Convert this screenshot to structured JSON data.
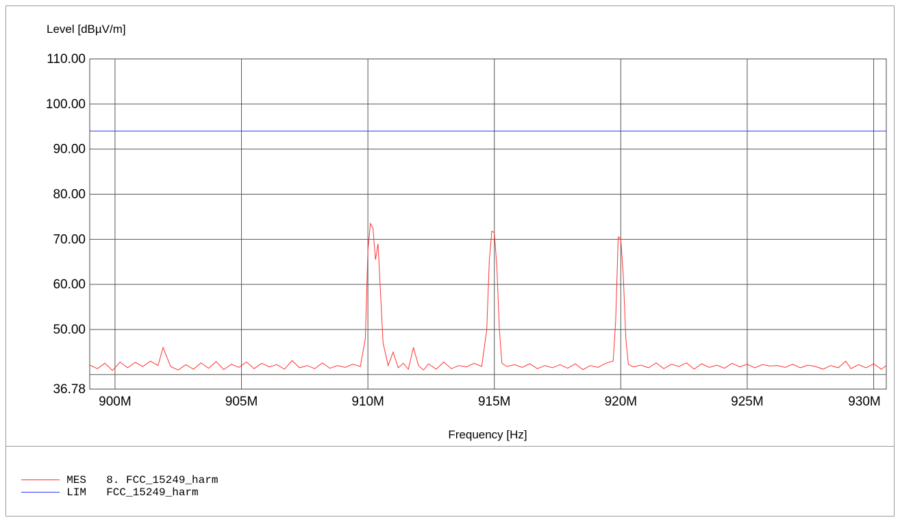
{
  "chart_data": {
    "type": "line",
    "title": "",
    "ylabel": "Level [dBµV/m]",
    "xlabel": "Frequency [Hz]",
    "xlim": [
      899000000,
      930500000
    ],
    "ylim": [
      36.78,
      110.0
    ],
    "y_ticks": [
      {
        "value": 110,
        "label": "110.00"
      },
      {
        "value": 100,
        "label": "100.00"
      },
      {
        "value": 90,
        "label": "90.00"
      },
      {
        "value": 80,
        "label": "80.00"
      },
      {
        "value": 70,
        "label": "70.00"
      },
      {
        "value": 60,
        "label": "60.00"
      },
      {
        "value": 50,
        "label": "50.00"
      },
      {
        "value": 36.78,
        "label": "36.78"
      }
    ],
    "y_gridlines": [
      110,
      100,
      90,
      80,
      70,
      60,
      50,
      40
    ],
    "x_ticks": [
      {
        "value": 900000000,
        "label": "900M"
      },
      {
        "value": 905000000,
        "label": "905M"
      },
      {
        "value": 910000000,
        "label": "910M"
      },
      {
        "value": 915000000,
        "label": "915M"
      },
      {
        "value": 920000000,
        "label": "920M"
      },
      {
        "value": 925000000,
        "label": "925M"
      },
      {
        "value": 930000000,
        "label": "930M"
      }
    ],
    "grid": true,
    "series": [
      {
        "name": "MES",
        "color": "#ff3030",
        "x": [
          899000000,
          899300000,
          899600000,
          899900000,
          900200000,
          900500000,
          900800000,
          901100000,
          901400000,
          901700000,
          901900000,
          902200000,
          902500000,
          902800000,
          903100000,
          903400000,
          903700000,
          904000000,
          904300000,
          904600000,
          904900000,
          905200000,
          905500000,
          905800000,
          906100000,
          906400000,
          906700000,
          907000000,
          907300000,
          907600000,
          907900000,
          908200000,
          908500000,
          908800000,
          909100000,
          909400000,
          909700000,
          909900000,
          910000000,
          910100000,
          910200000,
          910300000,
          910400000,
          910500000,
          910600000,
          910800000,
          911000000,
          911200000,
          911400000,
          911600000,
          911800000,
          912000000,
          912200000,
          912400000,
          912700000,
          913000000,
          913300000,
          913600000,
          913900000,
          914200000,
          914500000,
          914700000,
          914800000,
          914900000,
          915000000,
          915100000,
          915200000,
          915300000,
          915500000,
          915800000,
          916100000,
          916400000,
          916700000,
          917000000,
          917300000,
          917600000,
          917900000,
          918200000,
          918500000,
          918800000,
          919100000,
          919400000,
          919700000,
          919800000,
          919900000,
          920000000,
          920100000,
          920200000,
          920300000,
          920500000,
          920800000,
          921100000,
          921400000,
          921700000,
          922000000,
          922300000,
          922600000,
          922900000,
          923200000,
          923500000,
          923800000,
          924100000,
          924400000,
          924700000,
          925000000,
          925300000,
          925600000,
          925900000,
          926200000,
          926500000,
          926800000,
          927100000,
          927400000,
          927700000,
          928000000,
          928300000,
          928600000,
          928900000,
          929100000,
          929400000,
          929700000,
          930000000,
          930300000,
          930500000
        ],
        "values": [
          42.1,
          41.3,
          42.5,
          40.9,
          42.8,
          41.5,
          42.7,
          41.8,
          43.0,
          42.0,
          46.0,
          41.8,
          41.0,
          42.2,
          41.2,
          42.6,
          41.4,
          42.9,
          41.1,
          42.3,
          41.6,
          42.8,
          41.3,
          42.5,
          41.7,
          42.2,
          41.2,
          43.1,
          41.5,
          42.0,
          41.3,
          42.6,
          41.4,
          42.0,
          41.6,
          42.3,
          41.8,
          48.0,
          67.5,
          73.5,
          72.5,
          65.5,
          69.0,
          58.0,
          47.0,
          42.0,
          45.0,
          41.5,
          42.5,
          41.2,
          46.0,
          42.0,
          41.0,
          42.4,
          41.2,
          42.8,
          41.3,
          42.0,
          41.7,
          42.5,
          41.8,
          50.0,
          65.0,
          71.8,
          71.5,
          64.0,
          50.0,
          42.5,
          41.8,
          42.2,
          41.6,
          42.4,
          41.3,
          42.0,
          41.5,
          42.2,
          41.4,
          42.4,
          41.1,
          42.0,
          41.6,
          42.5,
          43.0,
          52.0,
          70.5,
          70.2,
          62.0,
          48.0,
          42.3,
          41.7,
          42.1,
          41.5,
          42.6,
          41.3,
          42.3,
          41.8,
          42.6,
          41.2,
          42.4,
          41.6,
          42.1,
          41.4,
          42.5,
          41.7,
          42.3,
          41.5,
          42.2,
          41.9,
          42.0,
          41.6,
          42.3,
          41.5,
          42.1,
          41.8,
          41.2,
          42.0,
          41.5,
          43.0,
          41.3,
          42.2,
          41.5,
          42.4,
          41.2,
          42.0
        ]
      },
      {
        "name": "LIM",
        "color": "#3333ff",
        "x": [
          899000000,
          930500000
        ],
        "values": [
          94.0,
          94.0
        ]
      }
    ]
  },
  "legend": {
    "items": [
      {
        "code": "MES",
        "text": "8. FCC_15249_harm",
        "color": "#ff3030"
      },
      {
        "code": "LIM",
        "text": "FCC_15249_harm",
        "color": "#3333ff"
      }
    ]
  }
}
